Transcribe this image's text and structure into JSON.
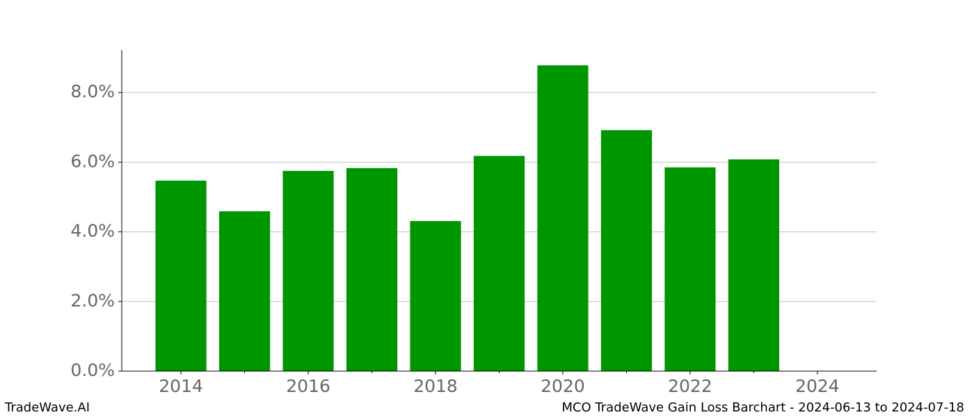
{
  "chart_data": {
    "type": "bar",
    "title": "MCO TradeWave Gain Loss Barchart - 2024-06-13 to 2024-07-18",
    "watermark": "TradeWave.AI",
    "x": [
      2014,
      2015,
      2016,
      2017,
      2018,
      2019,
      2020,
      2021,
      2022,
      2023
    ],
    "values": [
      5.47,
      4.59,
      5.75,
      5.83,
      4.31,
      6.18,
      8.78,
      6.92,
      5.85,
      6.08
    ],
    "color": "#009600",
    "bar_width": 0.8,
    "xlim": [
      2013.07,
      2024.93
    ],
    "xticks": [
      2014,
      2016,
      2018,
      2020,
      2022,
      2024
    ],
    "xticks_minor": [
      2015,
      2017,
      2019,
      2021,
      2023
    ],
    "ylim": [
      0,
      9.22
    ],
    "yticks": [
      {
        "value": 0,
        "label": "0.0%"
      },
      {
        "value": 2,
        "label": "2.0%"
      },
      {
        "value": 4,
        "label": "4.0%"
      },
      {
        "value": 6,
        "label": "6.0%"
      },
      {
        "value": 8,
        "label": "8.0%"
      }
    ],
    "grid": true
  }
}
